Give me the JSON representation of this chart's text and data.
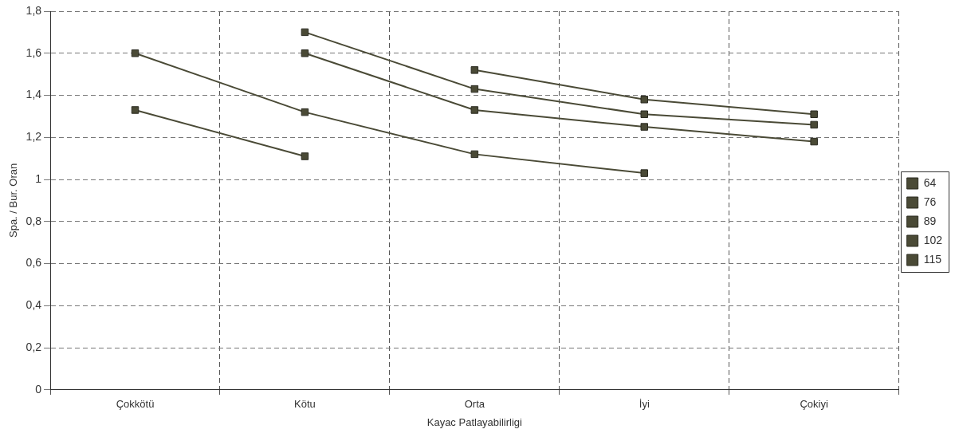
{
  "chart_data": {
    "type": "line",
    "xlabel": "Kayac Patlayabilirligi",
    "ylabel": "Spa. / Bur. Oran",
    "categories": [
      "Çokkötü",
      "Kötu",
      "Orta",
      "İyi",
      "Çokiyi"
    ],
    "series": [
      {
        "name": "64",
        "color": "#4a4a36",
        "values": [
          1.33,
          1.11,
          null,
          null,
          null
        ]
      },
      {
        "name": "76",
        "color": "#4a4a36",
        "values": [
          1.6,
          1.32,
          1.12,
          1.03,
          null
        ]
      },
      {
        "name": "89",
        "color": "#4a4a36",
        "values": [
          null,
          1.7,
          1.43,
          1.31,
          1.26
        ]
      },
      {
        "name": "102",
        "color": "#4a4a36",
        "values": [
          null,
          1.6,
          1.33,
          1.25,
          1.18
        ]
      },
      {
        "name": "115",
        "color": "#4a4a36",
        "values": [
          null,
          null,
          1.52,
          1.38,
          1.31
        ]
      }
    ],
    "ylim": [
      0,
      1.8
    ],
    "yticks": [
      0,
      {
        "value": 0.2,
        "label": "0,2"
      },
      {
        "value": 0.4,
        "label": "0,4"
      },
      {
        "value": 0.6,
        "label": "0,6"
      },
      {
        "value": 0.8,
        "label": "0,8"
      },
      1,
      {
        "value": 1.2,
        "label": "1,2"
      },
      {
        "value": 1.4,
        "label": "1,4"
      },
      {
        "value": 1.6,
        "label": "1,6"
      },
      {
        "value": 1.8,
        "label": "1,8"
      }
    ],
    "grid": true,
    "legend": "right",
    "marker": "square",
    "line_style": "solid"
  }
}
